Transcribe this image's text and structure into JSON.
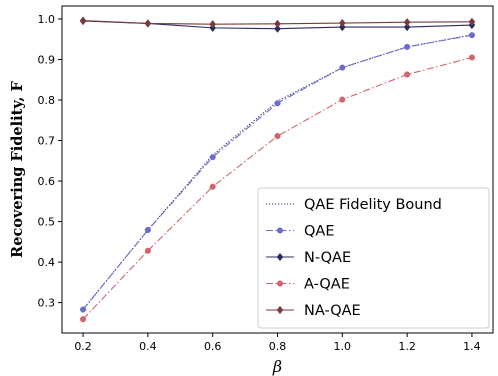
{
  "chart_data": {
    "type": "line",
    "xlabel": "β",
    "ylabel": "Recovering Fidelity, F",
    "x": [
      0.2,
      0.4,
      0.6,
      0.8,
      1.0,
      1.2,
      1.4
    ],
    "x_ticks": [
      "0.2",
      "0.4",
      "0.6",
      "0.8",
      "1.0",
      "1.2",
      "1.4"
    ],
    "y_ticks": [
      "0.3",
      "0.4",
      "0.5",
      "0.6",
      "0.7",
      "0.8",
      "0.9",
      "1.0"
    ],
    "xlim": [
      0.135,
      1.465
    ],
    "ylim": [
      0.225,
      1.032
    ],
    "grid": false,
    "legend_position": "lower-right",
    "series": [
      {
        "name": "QAE Fidelity Bound",
        "values": [
          0.283,
          0.479,
          0.664,
          0.797,
          0.88,
          0.931,
          0.961
        ],
        "color": "#2f2f7a",
        "style": "dotted",
        "marker": "none"
      },
      {
        "name": "QAE",
        "values": [
          0.283,
          0.479,
          0.659,
          0.792,
          0.88,
          0.931,
          0.96
        ],
        "color": "#6b6bd0",
        "style": "dashdot",
        "marker": "circle"
      },
      {
        "name": "N-QAE",
        "values": [
          0.995,
          0.989,
          0.978,
          0.976,
          0.98,
          0.98,
          0.985
        ],
        "color": "#2a2a60",
        "style": "solid",
        "marker": "diamond"
      },
      {
        "name": "A-QAE",
        "values": [
          0.259,
          0.428,
          0.586,
          0.711,
          0.801,
          0.863,
          0.905
        ],
        "color": "#d1636a",
        "style": "dashdot",
        "marker": "circle"
      },
      {
        "name": "NA-QAE",
        "values": [
          0.996,
          0.989,
          0.987,
          0.988,
          0.99,
          0.992,
          0.993
        ],
        "color": "#7a3a3a",
        "style": "solid",
        "marker": "diamond"
      }
    ]
  }
}
